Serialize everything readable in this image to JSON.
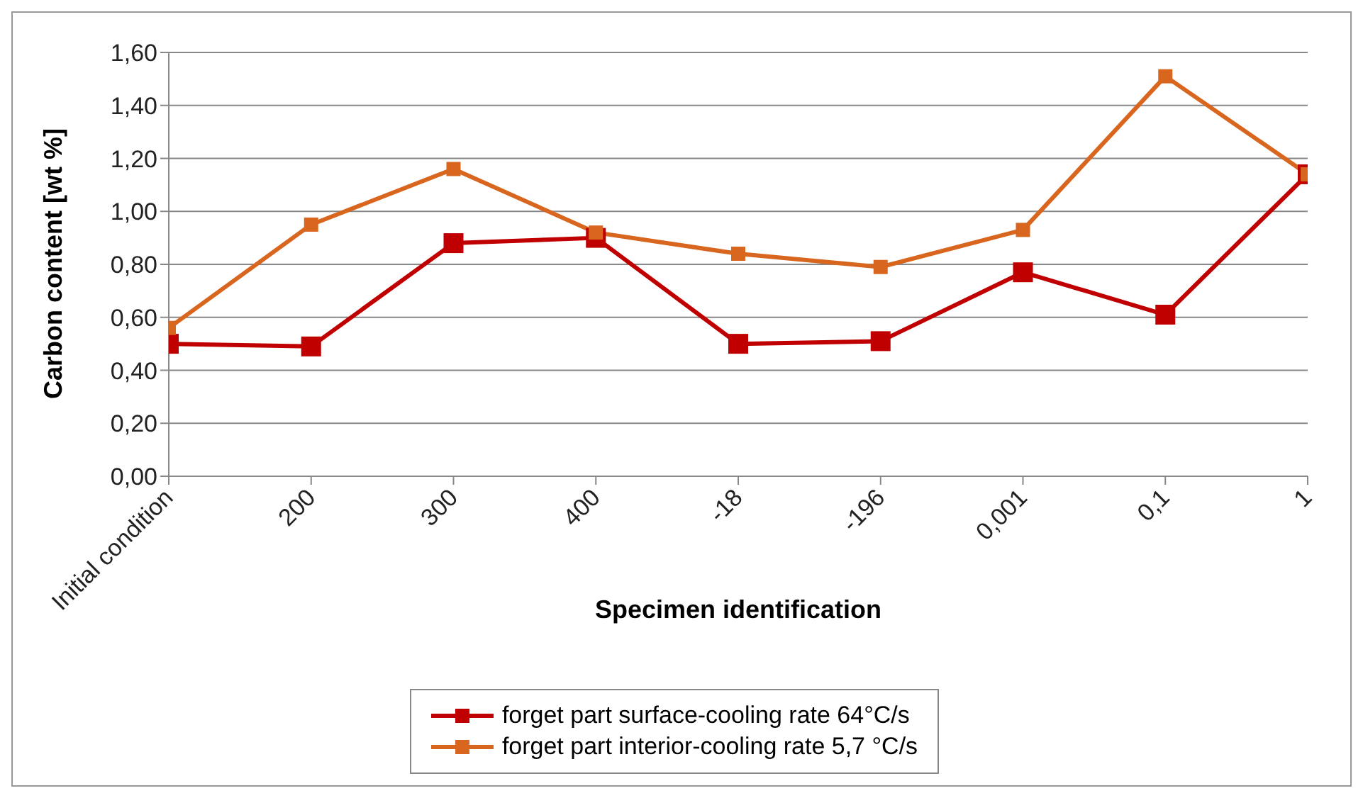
{
  "chart_data": {
    "type": "line",
    "xlabel": "Specimen identification",
    "ylabel": "Carbon content [wt %]",
    "categories": [
      "Initial condition",
      "200",
      "300",
      "400",
      "-18",
      "-196",
      "0,001",
      "0,1",
      "1"
    ],
    "series": [
      {
        "name": "forget part surface-cooling rate 64°C/s",
        "color": "#c00000",
        "values": [
          0.5,
          0.49,
          0.88,
          0.9,
          0.5,
          0.51,
          0.77,
          0.61,
          1.14
        ]
      },
      {
        "name": "forget part interior-cooling rate 5,7 °C/s",
        "color": "#d9661f",
        "values": [
          0.56,
          0.95,
          1.16,
          0.92,
          0.84,
          0.79,
          0.93,
          1.51,
          1.14
        ]
      }
    ],
    "ylim": [
      0,
      1.6
    ],
    "yticks": [
      {
        "value": 0,
        "label": "0,00"
      },
      {
        "value": 0.2,
        "label": "0,20"
      },
      {
        "value": 0.4,
        "label": "0,40"
      },
      {
        "value": 0.6,
        "label": "0,60"
      },
      {
        "value": 0.8,
        "label": "0,80"
      },
      {
        "value": 1,
        "label": "1,00"
      },
      {
        "value": 1.2,
        "label": "1,20"
      },
      {
        "value": 1.4,
        "label": "1,40"
      },
      {
        "value": 1.6,
        "label": "1,60"
      }
    ],
    "grid": "y",
    "legend": "bottom",
    "marker": "square",
    "line_style": "solid"
  }
}
